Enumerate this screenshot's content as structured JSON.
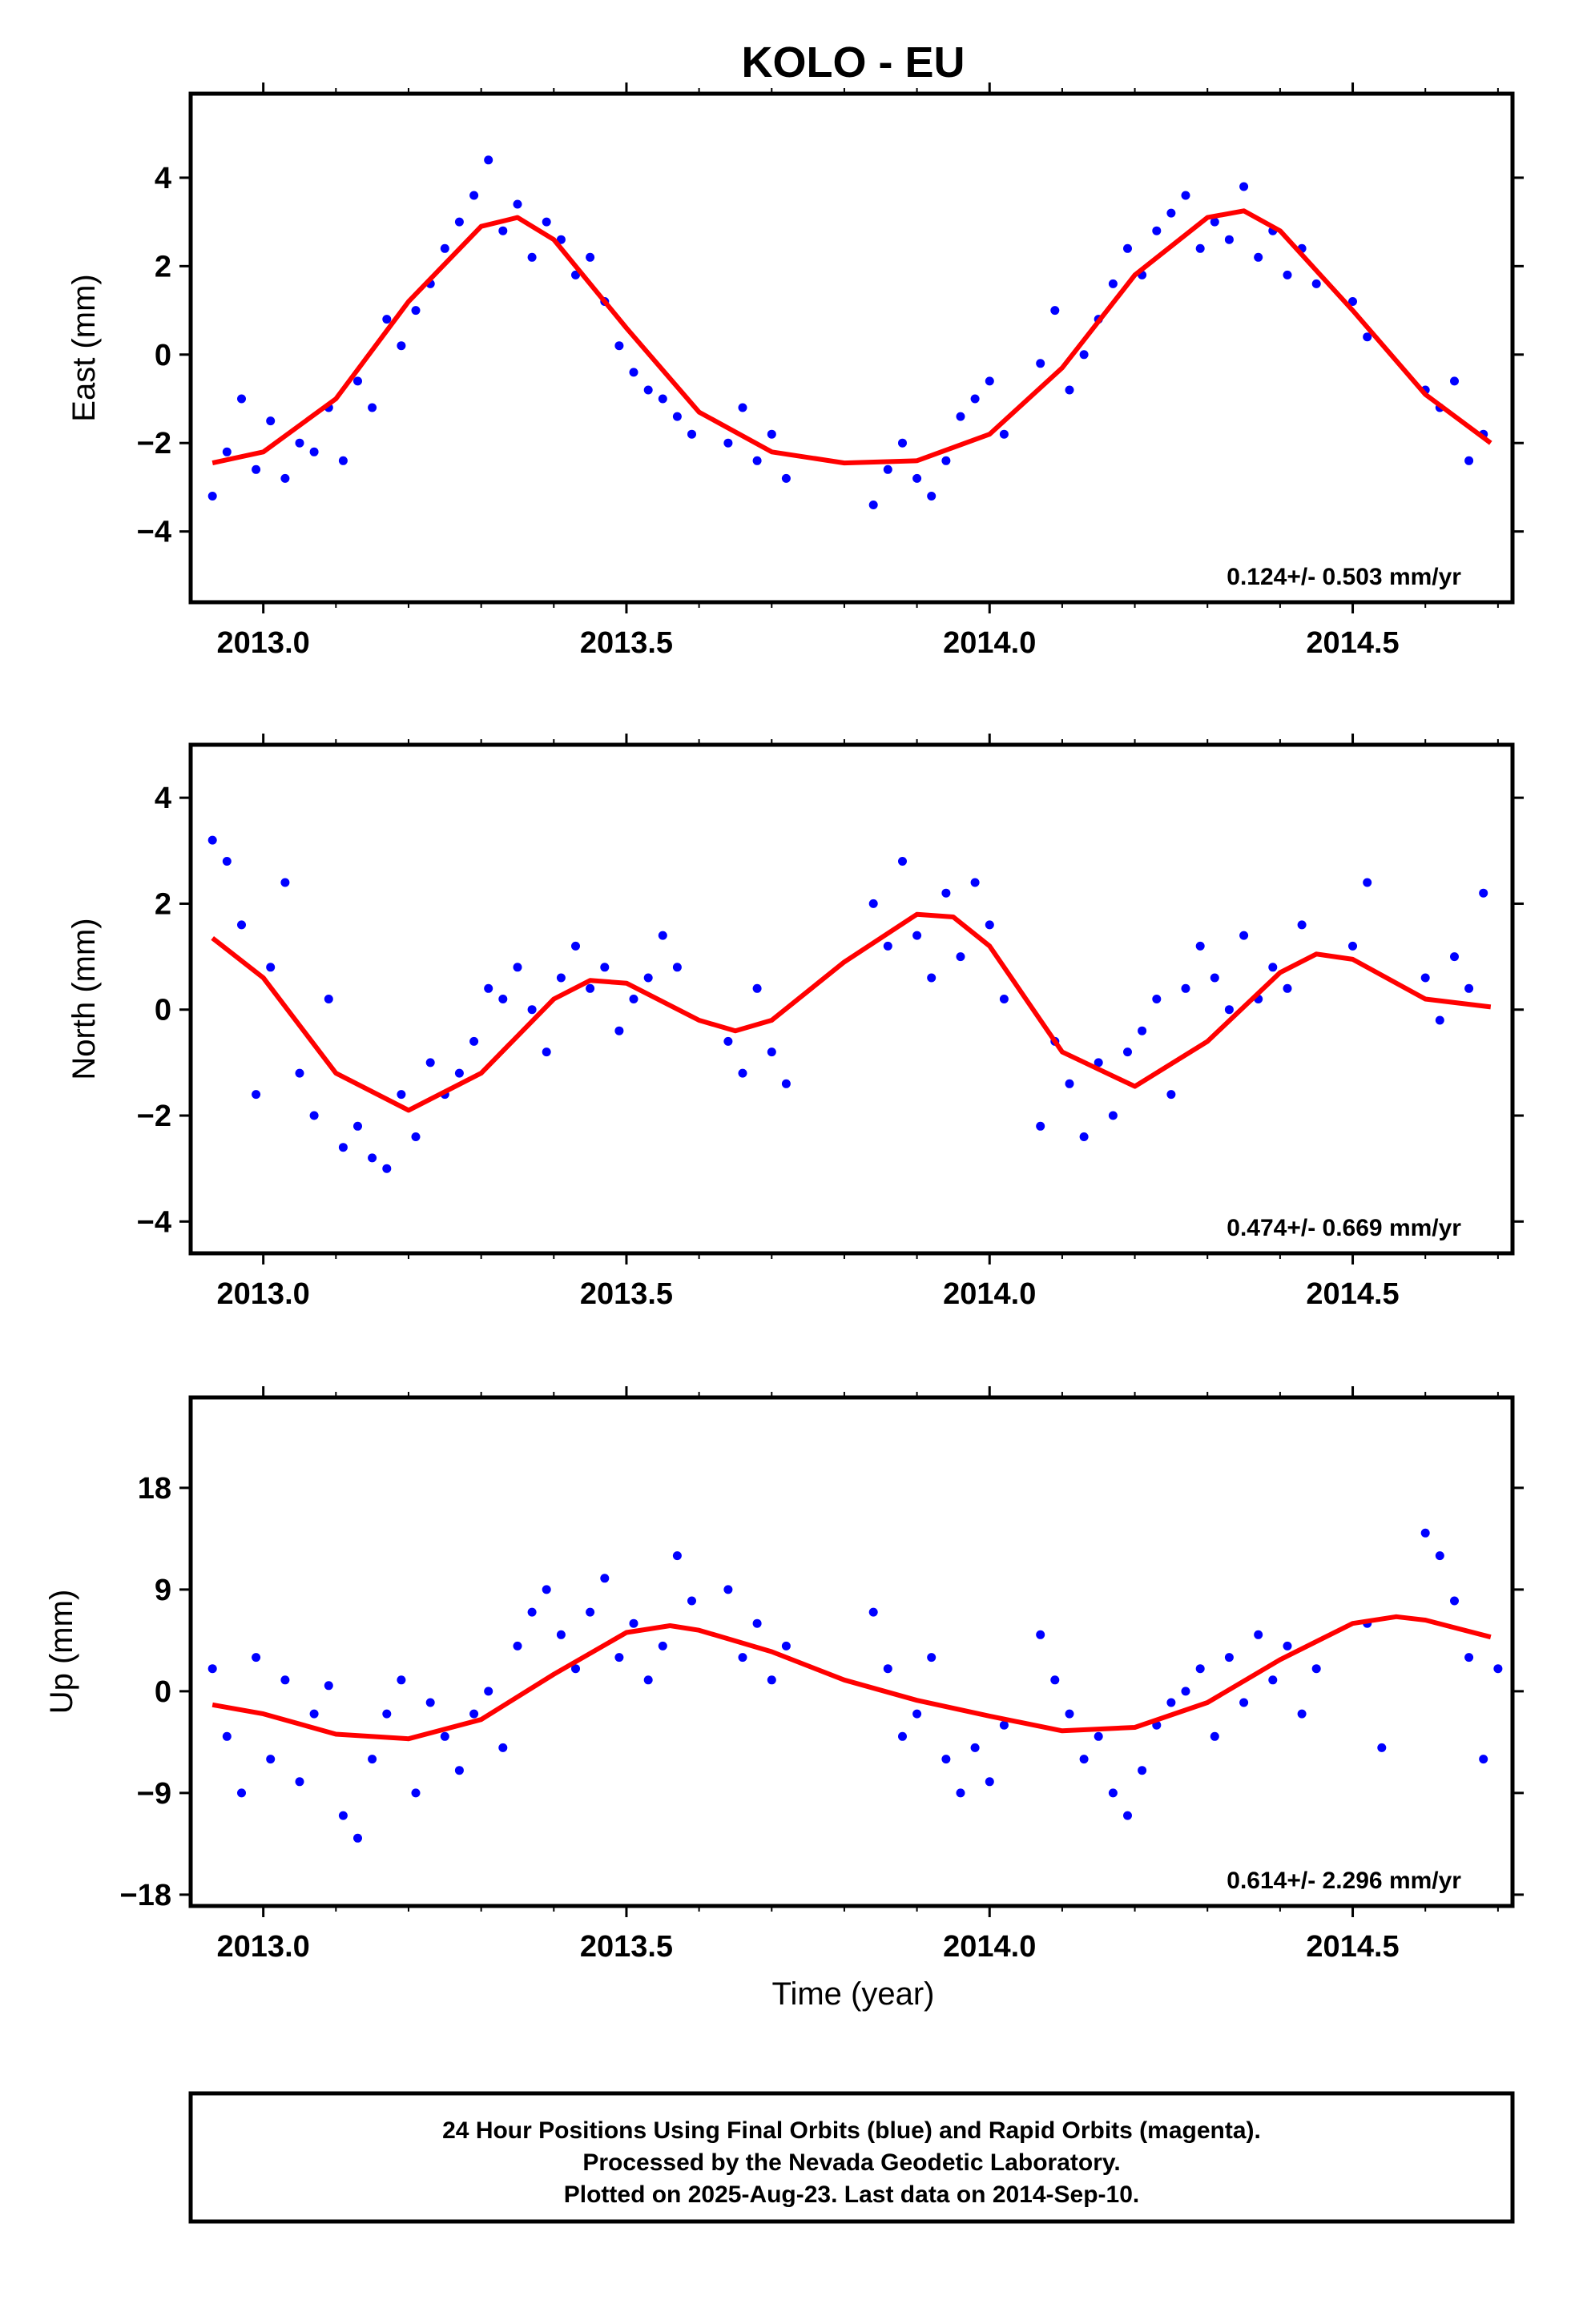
{
  "chart_data": {
    "type": "scatter",
    "title": "KOLO - EU",
    "xlabel": "Time (year)",
    "x_ticks": [
      "2013.0",
      "2013.5",
      "2014.0",
      "2014.5"
    ],
    "xlim": [
      2012.9,
      2014.72
    ],
    "colors": {
      "final_orbits": "#0000ff",
      "fit": "#ff0000"
    },
    "panels": [
      {
        "ylabel": "East (mm)",
        "ylim": [
          -5.6,
          5.9
        ],
        "y_ticks": [
          "4",
          "2",
          "0",
          "−2",
          "−4"
        ],
        "y_tick_values": [
          4,
          2,
          0,
          -2,
          -4
        ],
        "rate": "0.124+/- 0.503 mm/yr",
        "series": [
          {
            "type": "scatter",
            "x": [
              2012.93,
              2012.95,
              2012.97,
              2012.99,
              2013.01,
              2013.03,
              2013.05,
              2013.07,
              2013.09,
              2013.11,
              2013.13,
              2013.15,
              2013.17,
              2013.19,
              2013.21,
              2013.23,
              2013.25,
              2013.27,
              2013.29,
              2013.31,
              2013.33,
              2013.35,
              2013.37,
              2013.39,
              2013.41,
              2013.43,
              2013.45,
              2013.47,
              2013.49,
              2013.51,
              2013.53,
              2013.55,
              2013.57,
              2013.59,
              2013.64,
              2013.66,
              2013.68,
              2013.7,
              2013.72,
              2013.84,
              2013.86,
              2013.88,
              2013.9,
              2013.92,
              2013.94,
              2013.96,
              2013.98,
              2014.0,
              2014.02,
              2014.07,
              2014.09,
              2014.11,
              2014.13,
              2014.15,
              2014.17,
              2014.19,
              2014.21,
              2014.23,
              2014.25,
              2014.27,
              2014.29,
              2014.31,
              2014.33,
              2014.35,
              2014.37,
              2014.39,
              2014.41,
              2014.43,
              2014.45,
              2014.5,
              2014.52,
              2014.6,
              2014.62,
              2014.64,
              2014.66,
              2014.68
            ],
            "y": [
              -3.2,
              -2.2,
              -1.0,
              -2.6,
              -1.5,
              -2.8,
              -2.0,
              -2.2,
              -1.2,
              -2.4,
              -0.6,
              -1.2,
              0.8,
              0.2,
              1.0,
              1.6,
              2.4,
              3.0,
              3.6,
              4.4,
              2.8,
              3.4,
              2.2,
              3.0,
              2.6,
              1.8,
              2.2,
              1.2,
              0.2,
              -0.4,
              -0.8,
              -1.0,
              -1.4,
              -1.8,
              -2.0,
              -1.2,
              -2.4,
              -1.8,
              -2.8,
              -3.4,
              -2.6,
              -2.0,
              -2.8,
              -3.2,
              -2.4,
              -1.4,
              -1.0,
              -0.6,
              -1.8,
              -0.2,
              1.0,
              -0.8,
              0.0,
              0.8,
              1.6,
              2.4,
              1.8,
              2.8,
              3.2,
              3.6,
              2.4,
              3.0,
              2.6,
              3.8,
              2.2,
              2.8,
              1.8,
              2.4,
              1.6,
              1.2,
              0.4,
              -0.8,
              -1.2,
              -0.6,
              -2.4,
              -1.8
            ]
          },
          {
            "type": "line",
            "x": [
              2012.93,
              2013.0,
              2013.1,
              2013.2,
              2013.3,
              2013.35,
              2013.4,
              2013.5,
              2013.6,
              2013.7,
              2013.8,
              2013.9,
              2014.0,
              2014.1,
              2014.2,
              2014.3,
              2014.35,
              2014.4,
              2014.5,
              2014.6,
              2014.69
            ],
            "y": [
              -2.45,
              -2.2,
              -1.0,
              1.2,
              2.9,
              3.1,
              2.6,
              0.6,
              -1.3,
              -2.2,
              -2.45,
              -2.4,
              -1.8,
              -0.3,
              1.8,
              3.1,
              3.25,
              2.8,
              1.0,
              -0.9,
              -2.0
            ]
          }
        ]
      },
      {
        "ylabel": "North (mm)",
        "ylim": [
          -4.6,
          5.0
        ],
        "y_ticks": [
          "4",
          "2",
          "0",
          "−2",
          "−4"
        ],
        "y_tick_values": [
          4,
          2,
          0,
          -2,
          -4
        ],
        "rate": "0.474+/- 0.669 mm/yr",
        "series": [
          {
            "type": "scatter",
            "x": [
              2012.93,
              2012.95,
              2012.97,
              2012.99,
              2013.01,
              2013.03,
              2013.05,
              2013.07,
              2013.09,
              2013.11,
              2013.13,
              2013.15,
              2013.17,
              2013.19,
              2013.21,
              2013.23,
              2013.25,
              2013.27,
              2013.29,
              2013.31,
              2013.33,
              2013.35,
              2013.37,
              2013.39,
              2013.41,
              2013.43,
              2013.45,
              2013.47,
              2013.49,
              2013.51,
              2013.53,
              2013.55,
              2013.57,
              2013.64,
              2013.66,
              2013.68,
              2013.7,
              2013.72,
              2013.84,
              2013.86,
              2013.88,
              2013.9,
              2013.92,
              2013.94,
              2013.96,
              2013.98,
              2014.0,
              2014.02,
              2014.07,
              2014.09,
              2014.11,
              2014.13,
              2014.15,
              2014.17,
              2014.19,
              2014.21,
              2014.23,
              2014.25,
              2014.27,
              2014.29,
              2014.31,
              2014.33,
              2014.35,
              2014.37,
              2014.39,
              2014.41,
              2014.43,
              2014.5,
              2014.52,
              2014.6,
              2014.62,
              2014.64,
              2014.66,
              2014.68
            ],
            "y": [
              3.2,
              2.8,
              1.6,
              -1.6,
              0.8,
              2.4,
              -1.2,
              -2.0,
              0.2,
              -2.6,
              -2.2,
              -2.8,
              -3.0,
              -1.6,
              -2.4,
              -1.0,
              -1.6,
              -1.2,
              -0.6,
              0.4,
              0.2,
              0.8,
              0.0,
              -0.8,
              0.6,
              1.2,
              0.4,
              0.8,
              -0.4,
              0.2,
              0.6,
              1.4,
              0.8,
              -0.6,
              -1.2,
              0.4,
              -0.8,
              -1.4,
              2.0,
              1.2,
              2.8,
              1.4,
              0.6,
              2.2,
              1.0,
              2.4,
              1.6,
              0.2,
              -2.2,
              -0.6,
              -1.4,
              -2.4,
              -1.0,
              -2.0,
              -0.8,
              -0.4,
              0.2,
              -1.6,
              0.4,
              1.2,
              0.6,
              0.0,
              1.4,
              0.2,
              0.8,
              0.4,
              1.6,
              1.2,
              2.4,
              0.6,
              -0.2,
              1.0,
              0.4,
              2.2
            ]
          },
          {
            "type": "line",
            "x": [
              2012.93,
              2013.0,
              2013.1,
              2013.2,
              2013.3,
              2013.4,
              2013.45,
              2013.5,
              2013.6,
              2013.65,
              2013.7,
              2013.8,
              2013.9,
              2013.95,
              2014.0,
              2014.1,
              2014.2,
              2014.3,
              2014.4,
              2014.45,
              2014.5,
              2014.6,
              2014.69
            ],
            "y": [
              1.35,
              0.6,
              -1.2,
              -1.9,
              -1.2,
              0.2,
              0.55,
              0.5,
              -0.2,
              -0.4,
              -0.2,
              0.9,
              1.8,
              1.75,
              1.2,
              -0.8,
              -1.45,
              -0.6,
              0.7,
              1.05,
              0.95,
              0.2,
              0.05
            ]
          }
        ]
      },
      {
        "ylabel": "Up (mm)",
        "ylim": [
          -19,
          26
        ],
        "y_ticks": [
          "18",
          "9",
          "0",
          "−9",
          "−18"
        ],
        "y_tick_values": [
          18,
          9,
          0,
          -9,
          -18
        ],
        "rate": "0.614+/- 2.296 mm/yr",
        "series": [
          {
            "type": "scatter",
            "x": [
              2012.93,
              2012.95,
              2012.97,
              2012.99,
              2013.01,
              2013.03,
              2013.05,
              2013.07,
              2013.09,
              2013.11,
              2013.13,
              2013.15,
              2013.17,
              2013.19,
              2013.21,
              2013.23,
              2013.25,
              2013.27,
              2013.29,
              2013.31,
              2013.33,
              2013.35,
              2013.37,
              2013.39,
              2013.41,
              2013.43,
              2013.45,
              2013.47,
              2013.49,
              2013.51,
              2013.53,
              2013.55,
              2013.57,
              2013.59,
              2013.64,
              2013.66,
              2013.68,
              2013.7,
              2013.72,
              2013.84,
              2013.86,
              2013.88,
              2013.9,
              2013.92,
              2013.94,
              2013.96,
              2013.98,
              2014.0,
              2014.02,
              2014.07,
              2014.09,
              2014.11,
              2014.13,
              2014.15,
              2014.17,
              2014.19,
              2014.21,
              2014.23,
              2014.25,
              2014.27,
              2014.29,
              2014.31,
              2014.33,
              2014.35,
              2014.37,
              2014.39,
              2014.41,
              2014.43,
              2014.45,
              2014.52,
              2014.54,
              2014.6,
              2014.62,
              2014.64,
              2014.66,
              2014.68,
              2014.7
            ],
            "y": [
              2.0,
              -4.0,
              -9.0,
              3.0,
              -6.0,
              1.0,
              -8.0,
              -2.0,
              0.5,
              -11.0,
              -13.0,
              -6.0,
              -2.0,
              1.0,
              -9.0,
              -1.0,
              -4.0,
              -7.0,
              -2.0,
              0.0,
              -5.0,
              4.0,
              7.0,
              9.0,
              5.0,
              2.0,
              7.0,
              10.0,
              3.0,
              6.0,
              1.0,
              4.0,
              12.0,
              8.0,
              9.0,
              3.0,
              6.0,
              1.0,
              4.0,
              7.0,
              2.0,
              -4.0,
              -2.0,
              3.0,
              -6.0,
              -9.0,
              -5.0,
              -8.0,
              -3.0,
              5.0,
              1.0,
              -2.0,
              -6.0,
              -4.0,
              -9.0,
              -11.0,
              -7.0,
              -3.0,
              -1.0,
              0.0,
              2.0,
              -4.0,
              3.0,
              -1.0,
              5.0,
              1.0,
              4.0,
              -2.0,
              2.0,
              6.0,
              -5.0,
              14.0,
              12.0,
              8.0,
              3.0,
              -6.0,
              2.0
            ]
          },
          {
            "type": "line",
            "x": [
              2012.93,
              2013.0,
              2013.1,
              2013.2,
              2013.3,
              2013.4,
              2013.5,
              2013.56,
              2013.6,
              2013.7,
              2013.8,
              2013.9,
              2014.0,
              2014.1,
              2014.2,
              2014.3,
              2014.4,
              2014.5,
              2014.56,
              2014.6,
              2014.69
            ],
            "y": [
              -1.2,
              -2.0,
              -3.8,
              -4.2,
              -2.5,
              1.5,
              5.2,
              5.8,
              5.4,
              3.5,
              1.0,
              -0.8,
              -2.2,
              -3.5,
              -3.2,
              -1.0,
              2.8,
              6.0,
              6.6,
              6.3,
              4.8
            ]
          }
        ]
      }
    ]
  },
  "footer": {
    "line1": "24 Hour Positions Using Final Orbits (blue) and Rapid Orbits (magenta).",
    "line2": "Processed by the Nevada Geodetic Laboratory.",
    "line3": "Plotted on 2025-Aug-23. Last data on 2014-Sep-10."
  }
}
